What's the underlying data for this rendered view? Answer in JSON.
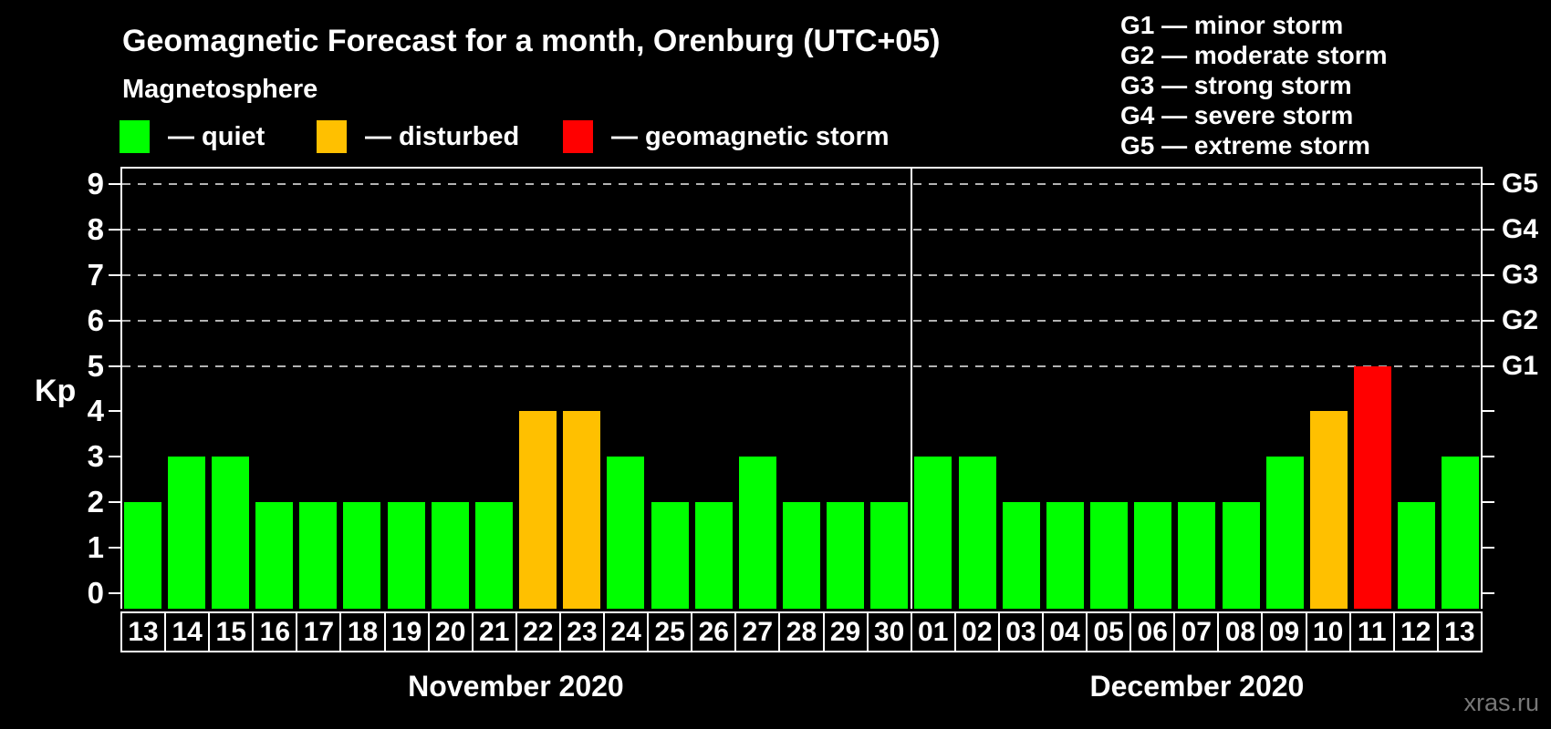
{
  "title": "Geomagnetic Forecast for a month, Orenburg (UTC+05)",
  "subtitle": "Magnetosphere",
  "legend": {
    "items": [
      {
        "status": "quiet",
        "label": "— quiet",
        "color": "#00ff00"
      },
      {
        "status": "disturbed",
        "label": "— disturbed",
        "color": "#ffc000"
      },
      {
        "status": "storm",
        "label": "— geomagnetic storm",
        "color": "#ff0000"
      }
    ]
  },
  "g_legend": [
    "G1 — minor storm",
    "G2 — moderate storm",
    "G3 — strong storm",
    "G4 — severe storm",
    "G5 — extreme storm"
  ],
  "chart_data": {
    "type": "bar",
    "title": "Geomagnetic Forecast for a month, Orenburg (UTC+05)",
    "ylabel": "Kp",
    "ylim": [
      0,
      9
    ],
    "y_ticks": [
      "0",
      "1",
      "2",
      "3",
      "4",
      "5",
      "6",
      "7",
      "8",
      "9"
    ],
    "grid_lines_at_kp": [
      5,
      6,
      7,
      8,
      9
    ],
    "grid": "dashed horizontal at Kp 5-9",
    "right_axis_labels": [
      {
        "kp": 5,
        "label": "G1"
      },
      {
        "kp": 6,
        "label": "G2"
      },
      {
        "kp": 7,
        "label": "G3"
      },
      {
        "kp": 8,
        "label": "G4"
      },
      {
        "kp": 9,
        "label": "G5"
      }
    ],
    "status_colors": {
      "quiet": "#00ff00",
      "disturbed": "#ffc000",
      "storm": "#ff0000"
    },
    "months": [
      {
        "label": "November 2020",
        "days": [
          "13",
          "14",
          "15",
          "16",
          "17",
          "18",
          "19",
          "20",
          "21",
          "22",
          "23",
          "24",
          "25",
          "26",
          "27",
          "28",
          "29",
          "30"
        ],
        "values": [
          2,
          3,
          3,
          2,
          2,
          2,
          2,
          2,
          2,
          4,
          4,
          3,
          2,
          2,
          3,
          2,
          2,
          2
        ],
        "status": [
          "quiet",
          "quiet",
          "quiet",
          "quiet",
          "quiet",
          "quiet",
          "quiet",
          "quiet",
          "quiet",
          "disturbed",
          "disturbed",
          "quiet",
          "quiet",
          "quiet",
          "quiet",
          "quiet",
          "quiet",
          "quiet"
        ]
      },
      {
        "label": "December 2020",
        "days": [
          "01",
          "02",
          "03",
          "04",
          "05",
          "06",
          "07",
          "08",
          "09",
          "10",
          "11",
          "12",
          "13"
        ],
        "values": [
          3,
          3,
          2,
          2,
          2,
          2,
          2,
          2,
          3,
          4,
          5,
          2,
          3
        ],
        "status": [
          "quiet",
          "quiet",
          "quiet",
          "quiet",
          "quiet",
          "quiet",
          "quiet",
          "quiet",
          "quiet",
          "disturbed",
          "storm",
          "quiet",
          "quiet"
        ]
      }
    ]
  },
  "watermark": "xras.ru"
}
